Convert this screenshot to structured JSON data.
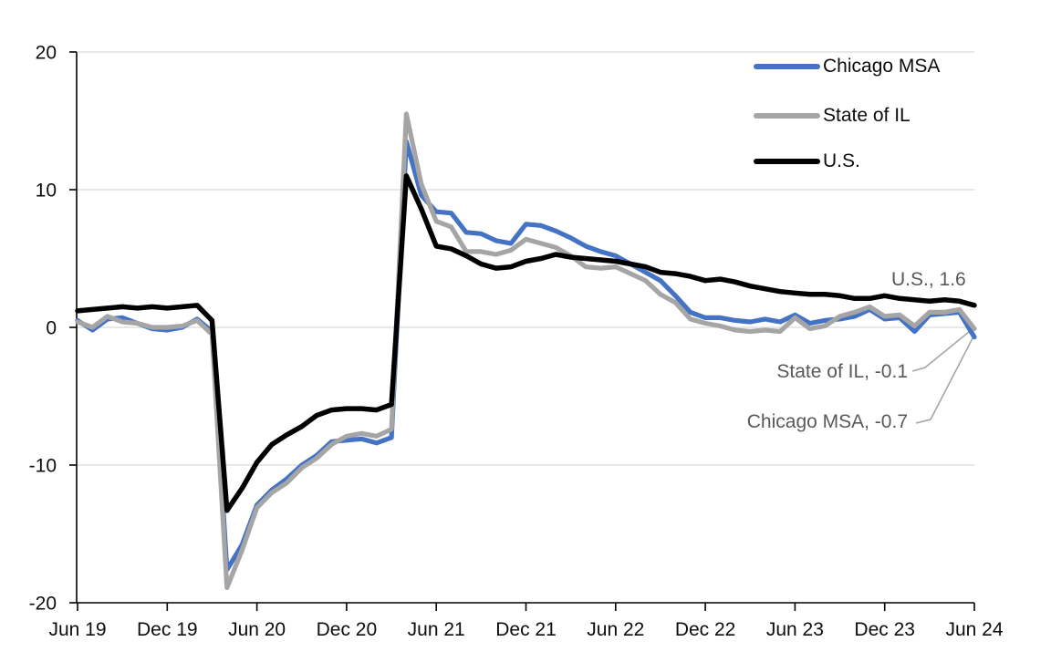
{
  "chart_data": {
    "type": "line",
    "title": "",
    "xlabel": "",
    "ylabel": "",
    "ylim": [
      -20,
      20
    ],
    "grid": "horizontal",
    "legend_position": "top-right",
    "x": [
      "2019-06",
      "2019-07",
      "2019-08",
      "2019-09",
      "2019-10",
      "2019-11",
      "2019-12",
      "2020-01",
      "2020-02",
      "2020-03",
      "2020-04",
      "2020-05",
      "2020-06",
      "2020-07",
      "2020-08",
      "2020-09",
      "2020-10",
      "2020-11",
      "2020-12",
      "2021-01",
      "2021-02",
      "2021-03",
      "2021-04",
      "2021-05",
      "2021-06",
      "2021-07",
      "2021-08",
      "2021-09",
      "2021-10",
      "2021-11",
      "2021-12",
      "2022-01",
      "2022-02",
      "2022-03",
      "2022-04",
      "2022-05",
      "2022-06",
      "2022-07",
      "2022-08",
      "2022-09",
      "2022-10",
      "2022-11",
      "2022-12",
      "2023-01",
      "2023-02",
      "2023-03",
      "2023-04",
      "2023-05",
      "2023-06",
      "2023-07",
      "2023-08",
      "2023-09",
      "2023-10",
      "2023-11",
      "2023-12",
      "2024-01",
      "2024-02",
      "2024-03",
      "2024-04",
      "2024-05",
      "2024-06"
    ],
    "x_axis_tick_labels": [
      "Jun 19",
      "Dec 19",
      "Jun 20",
      "Dec 20",
      "Jun 21",
      "Dec 21",
      "Jun 22",
      "Dec 22",
      "Jun 23",
      "Dec 23",
      "Jun 24"
    ],
    "x_tick_every_n_points": 6,
    "y_axis_ticks": [
      20,
      10,
      0,
      -10,
      -20
    ],
    "series": [
      {
        "name": "Chicago MSA",
        "color": "#4472C4",
        "end_value": -0.7,
        "values": [
          0.5,
          -0.2,
          0.6,
          0.7,
          0.3,
          -0.1,
          -0.2,
          0.0,
          0.6,
          -0.3,
          -17.6,
          -15.8,
          -12.9,
          -11.8,
          -11.0,
          -10.0,
          -9.3,
          -8.3,
          -8.2,
          -8.1,
          -8.4,
          -8.0,
          13.5,
          9.6,
          8.4,
          8.3,
          6.9,
          6.8,
          6.3,
          6.1,
          7.5,
          7.4,
          7.0,
          6.5,
          5.9,
          5.5,
          5.2,
          4.6,
          4.0,
          3.4,
          2.3,
          1.1,
          0.7,
          0.7,
          0.5,
          0.4,
          0.6,
          0.4,
          0.9,
          0.3,
          0.5,
          0.6,
          0.8,
          1.3,
          0.6,
          0.7,
          -0.3,
          0.9,
          1.0,
          1.1,
          -0.7
        ]
      },
      {
        "name": "State of IL",
        "color": "#A5A5A5",
        "end_value": -0.1,
        "values": [
          0.4,
          0.0,
          0.8,
          0.4,
          0.3,
          0.0,
          0.0,
          0.1,
          0.5,
          -0.5,
          -18.9,
          -16.2,
          -13.1,
          -12.0,
          -11.3,
          -10.2,
          -9.5,
          -8.5,
          -7.9,
          -7.7,
          -7.9,
          -7.4,
          15.5,
          10.4,
          7.7,
          7.3,
          5.5,
          5.5,
          5.3,
          5.6,
          6.4,
          6.1,
          5.8,
          5.2,
          4.4,
          4.3,
          4.4,
          3.9,
          3.4,
          2.4,
          1.8,
          0.6,
          0.3,
          0.1,
          -0.2,
          -0.3,
          -0.2,
          -0.3,
          0.7,
          -0.1,
          0.1,
          0.8,
          1.1,
          1.5,
          0.8,
          0.9,
          0.1,
          1.1,
          1.1,
          1.3,
          -0.1
        ]
      },
      {
        "name": "U.S.",
        "color": "#000000",
        "end_value": 1.6,
        "values": [
          1.2,
          1.3,
          1.4,
          1.5,
          1.4,
          1.5,
          1.4,
          1.5,
          1.6,
          0.5,
          -13.3,
          -11.7,
          -9.8,
          -8.5,
          -7.8,
          -7.2,
          -6.4,
          -6.0,
          -5.9,
          -5.9,
          -6.0,
          -5.6,
          11.0,
          8.6,
          5.9,
          5.7,
          5.2,
          4.6,
          4.3,
          4.4,
          4.8,
          5.0,
          5.3,
          5.1,
          5.0,
          4.9,
          4.8,
          4.6,
          4.4,
          4.0,
          3.9,
          3.7,
          3.4,
          3.5,
          3.3,
          3.0,
          2.8,
          2.6,
          2.5,
          2.4,
          2.4,
          2.3,
          2.1,
          2.1,
          2.3,
          2.1,
          2.0,
          1.9,
          2.0,
          1.9,
          1.6
        ]
      }
    ],
    "annotations": [
      {
        "text": "U.S., 1.6"
      },
      {
        "text": "State of IL, -0.1"
      },
      {
        "text": "Chicago MSA, -0.7"
      }
    ]
  },
  "colors": {
    "gridline": "#D9D9D9",
    "axis": "#000000",
    "tick_label": "#0d0d0d",
    "annotation_text": "#595959",
    "leader_line": "#A6A6A6"
  }
}
